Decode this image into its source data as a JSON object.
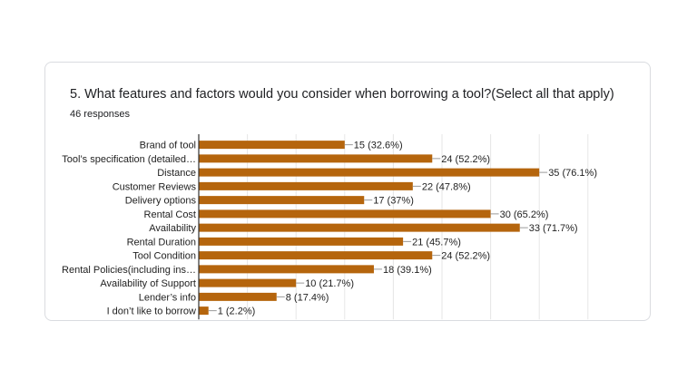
{
  "question": "5. What features and factors would you consider when borrowing a tool?(Select all that apply)",
  "responses": "46 responses",
  "colors": {
    "bar": "#b5650d",
    "grid": "#e6e6e6",
    "axis": "#333333"
  },
  "chart_data": {
    "type": "bar",
    "orientation": "horizontal",
    "total": 46,
    "xlim": [
      0,
      40
    ],
    "gridlines": [
      0,
      5,
      10,
      15,
      20,
      25,
      30,
      35,
      40
    ],
    "categories": [
      "Brand of tool",
      "Tool’s specification (detailed…",
      "Distance",
      "Customer Reviews",
      "Delivery options",
      "Rental Cost",
      "Availability",
      "Rental Duration",
      "Tool Condition",
      "Rental Policies(including ins…",
      "Availability of Support",
      "Lender’s info",
      "I don’t like to borrow"
    ],
    "values": [
      15,
      24,
      35,
      22,
      17,
      30,
      33,
      21,
      24,
      18,
      10,
      8,
      1
    ],
    "labels": [
      "15 (32.6%)",
      "24 (52.2%)",
      "35 (76.1%)",
      "22 (47.8%)",
      "17 (37%)",
      "30 (65.2%)",
      "33 (71.7%)",
      "21 (45.7%)",
      "24 (52.2%)",
      "18 (39.1%)",
      "10 (21.7%)",
      "8 (17.4%)",
      "1 (2.2%)"
    ]
  }
}
